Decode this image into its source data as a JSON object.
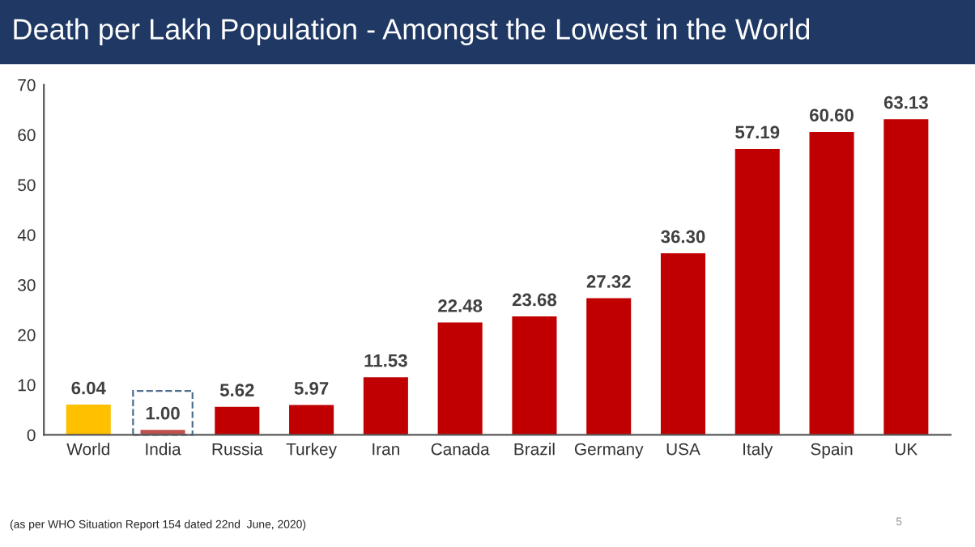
{
  "chart_data": {
    "type": "bar",
    "title": "Death per Lakh Population - Amongst the Lowest in the World",
    "categories": [
      "World",
      "India",
      "Russia",
      "Turkey",
      "Iran",
      "Canada",
      "Brazil",
      "Germany",
      "USA",
      "Italy",
      "Spain",
      "UK"
    ],
    "values": [
      6.04,
      1.0,
      5.62,
      5.97,
      11.53,
      22.48,
      23.68,
      27.32,
      36.3,
      57.19,
      60.6,
      63.13
    ],
    "value_labels": [
      "6.04",
      "1.00",
      "5.62",
      "5.97",
      "11.53",
      "22.48",
      "23.68",
      "27.32",
      "36.30",
      "57.19",
      "60.60",
      "63.13"
    ],
    "colors": [
      "#ffc000",
      "#c0504d",
      "#c00000",
      "#c00000",
      "#c00000",
      "#c00000",
      "#c00000",
      "#c00000",
      "#c00000",
      "#c00000",
      "#c00000",
      "#c00000"
    ],
    "ylim": [
      0,
      70
    ],
    "yticks": [
      0,
      10,
      20,
      30,
      40,
      50,
      60,
      70
    ],
    "grid": false,
    "legend": false,
    "annotations": [
      "(as per WHO Situation Report 154 dated 22nd  June, 2020)",
      "5"
    ]
  }
}
